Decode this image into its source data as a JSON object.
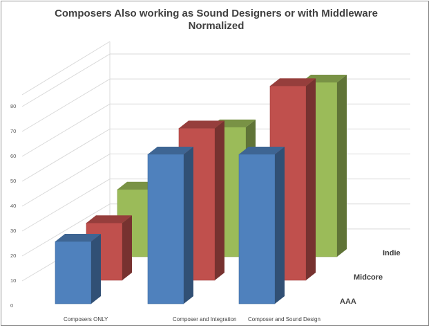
{
  "chart_data": {
    "type": "bar",
    "variant": "3d-column",
    "title": "Composers Also working as Sound Designers or with Middleware",
    "subtitle": "Normalized",
    "categories": [
      "Composers ONLY",
      "Composer and Integration",
      "Composer and Sound Design"
    ],
    "series": [
      {
        "name": "AAA",
        "values": [
          25,
          60,
          60
        ],
        "color": "#4F81BD"
      },
      {
        "name": "Midcore",
        "values": [
          23,
          61,
          78
        ],
        "color": "#C0504D"
      },
      {
        "name": "Indie",
        "values": [
          27,
          52,
          70
        ],
        "color": "#9BBB59"
      }
    ],
    "y_ticks": [
      "0",
      "10",
      "20",
      "30",
      "40",
      "50",
      "60",
      "70",
      "80"
    ],
    "ylim": [
      0,
      80
    ],
    "grid": true,
    "legend": "series labels at right of depth axis"
  }
}
